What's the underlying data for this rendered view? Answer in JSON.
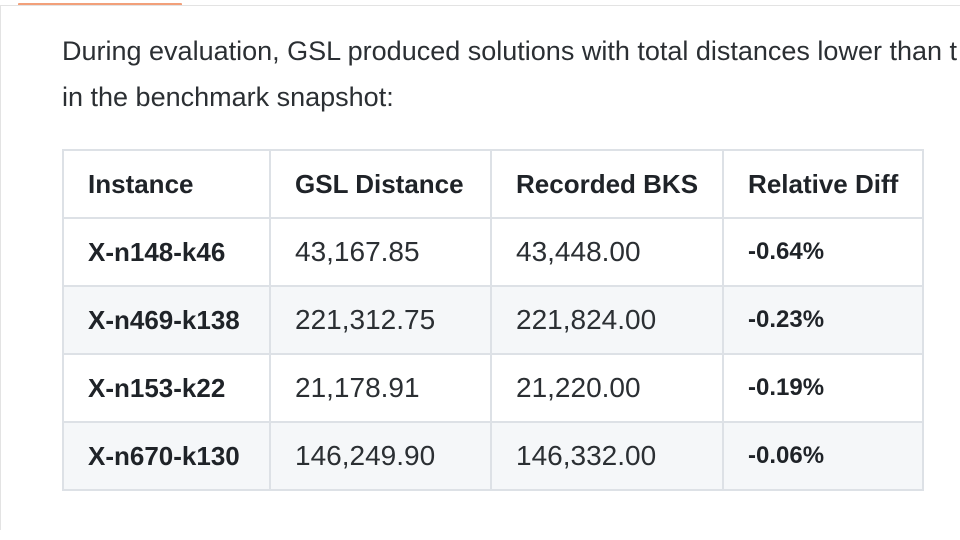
{
  "intro": {
    "line1": "During evaluation, GSL produced solutions with total distances lower than t",
    "line2": "in the benchmark snapshot:"
  },
  "table": {
    "headers": [
      "Instance",
      "GSL Distance",
      "Recorded BKS",
      "Relative Diff"
    ],
    "rows": [
      [
        "X-n148-k46",
        "43,167.85",
        "43,448.00",
        "-0.64%"
      ],
      [
        "X-n469-k138",
        "221,312.75",
        "221,824.00",
        "-0.23%"
      ],
      [
        "X-n153-k22",
        "21,178.91",
        "21,220.00",
        "-0.19%"
      ],
      [
        "X-n670-k130",
        "146,249.90",
        "146,332.00",
        "-0.06%"
      ]
    ]
  },
  "colors": {
    "accent": "#f2a07a",
    "border": "#dde1e6",
    "stripe": "#f5f7f9"
  }
}
